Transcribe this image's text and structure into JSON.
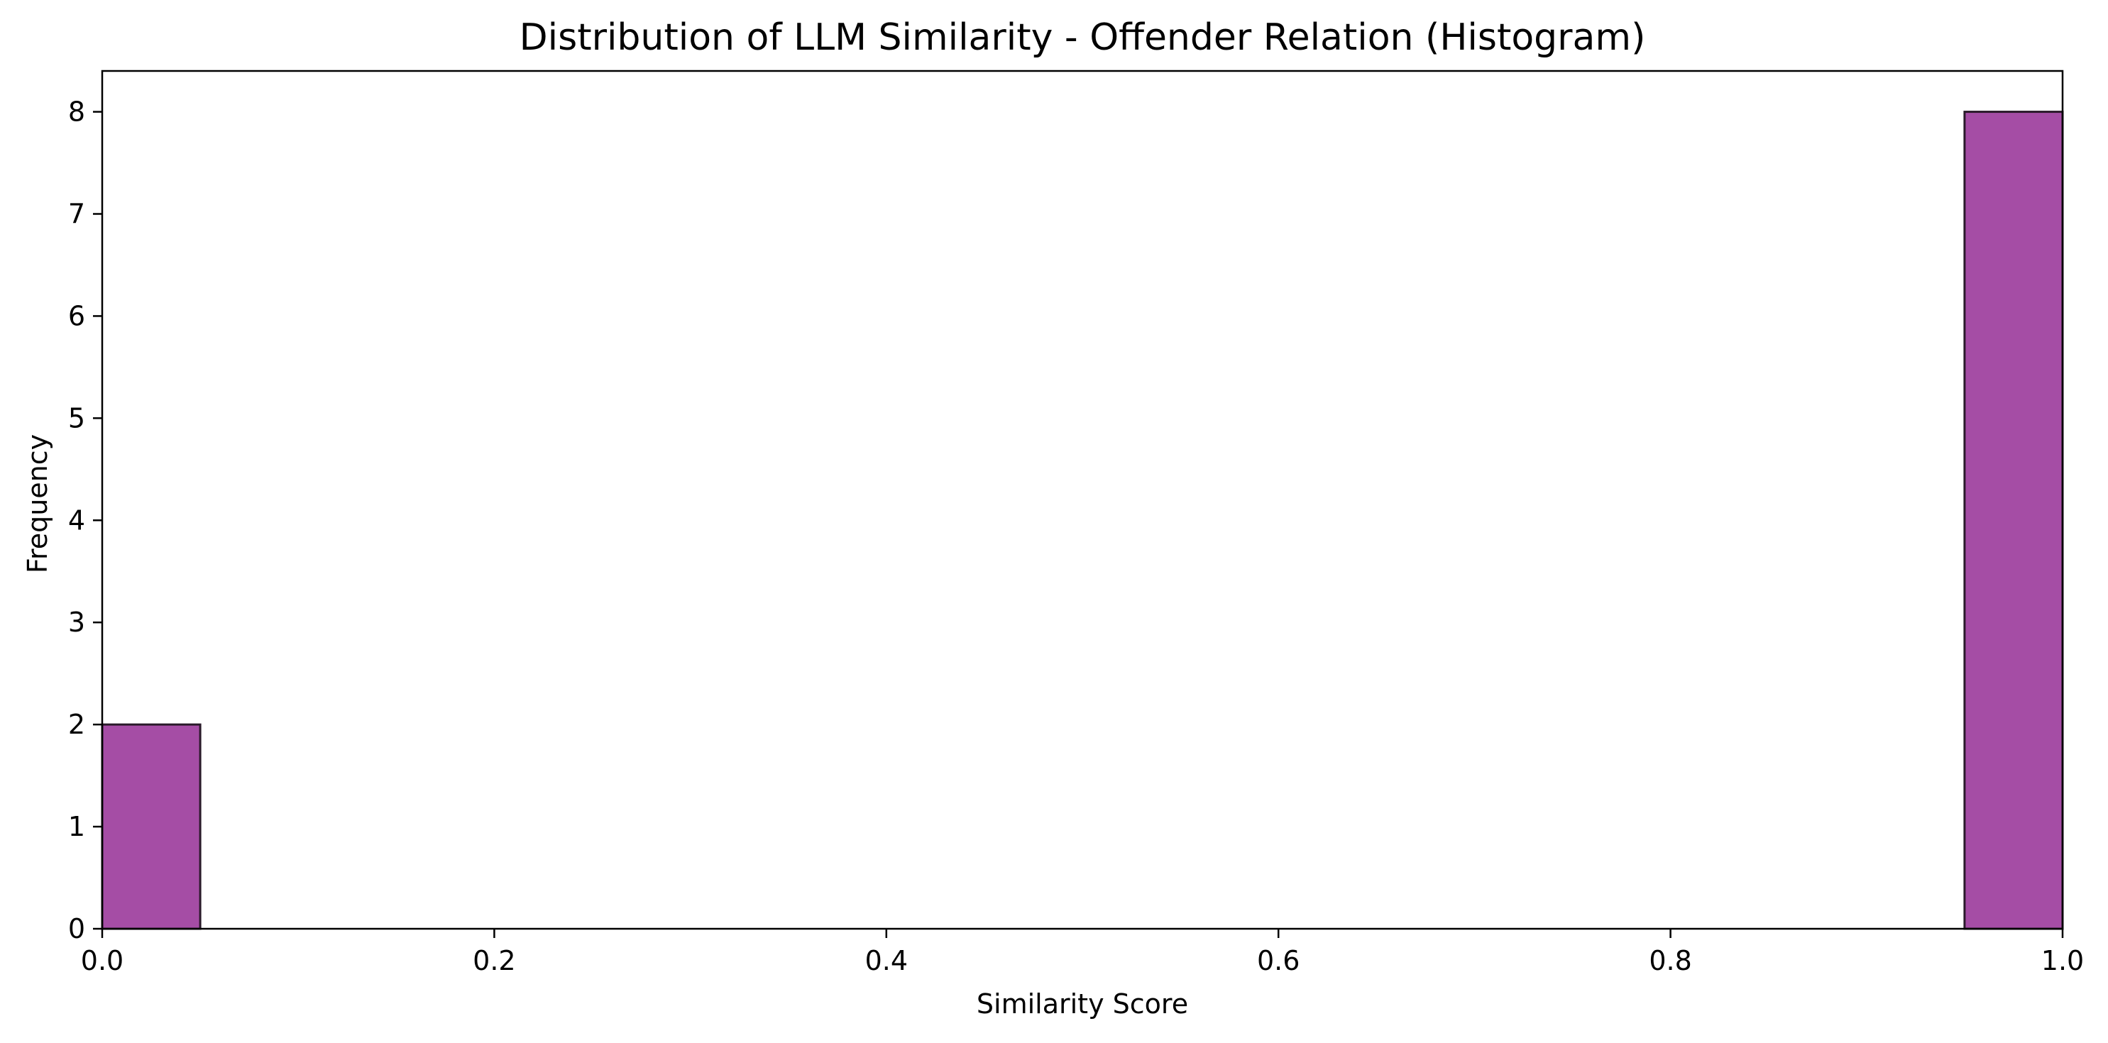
{
  "chart_data": {
    "type": "bar",
    "subtype": "histogram",
    "title": "Distribution of LLM Similarity - Offender Relation (Histogram)",
    "xlabel": "Similarity Score",
    "ylabel": "Frequency",
    "xlim": [
      0.0,
      1.0
    ],
    "ylim": [
      0,
      8.4
    ],
    "xticks": [
      0.0,
      0.2,
      0.4,
      0.6,
      0.8,
      1.0
    ],
    "xtick_labels": [
      "0.0",
      "0.2",
      "0.4",
      "0.6",
      "0.8",
      "1.0"
    ],
    "yticks": [
      0,
      1,
      2,
      3,
      4,
      5,
      6,
      7,
      8
    ],
    "ytick_labels": [
      "0",
      "1",
      "2",
      "3",
      "4",
      "5",
      "6",
      "7",
      "8"
    ],
    "bins": [
      {
        "start": 0.0,
        "end": 0.05,
        "count": 2
      },
      {
        "start": 0.95,
        "end": 1.0,
        "count": 8
      }
    ],
    "bar_color": "#a54da5",
    "edge_color": "#2a1a2a",
    "grid": false,
    "legend": "none"
  }
}
